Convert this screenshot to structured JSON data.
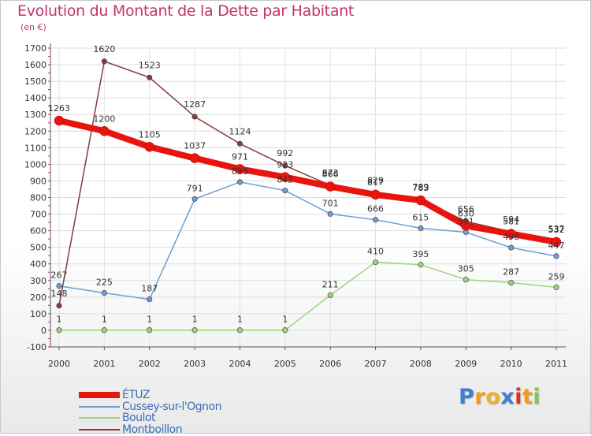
{
  "title": "Evolution du Montant de la Dette par Habitant",
  "subtitle": "(en €)",
  "brand": {
    "letters": [
      "P",
      "r",
      "o",
      "x",
      "i",
      "t",
      "i"
    ],
    "colors": [
      "#3d7fd1",
      "#f29a1d",
      "#e8b52a",
      "#3d7fd1",
      "#d8342a",
      "#f29a1d",
      "#8cc63f"
    ]
  },
  "chart_data": {
    "type": "line",
    "x": [
      "2000",
      "2001",
      "2002",
      "2003",
      "2004",
      "2005",
      "2006",
      "2007",
      "2008",
      "2009",
      "2010",
      "2011"
    ],
    "ylim": [
      -100,
      1700
    ],
    "yticks": [
      -100,
      0,
      100,
      200,
      300,
      400,
      500,
      600,
      700,
      800,
      900,
      1000,
      1100,
      1200,
      1300,
      1400,
      1500,
      1600,
      1700
    ],
    "grid": true,
    "legend_position": "bottom-left",
    "series": [
      {
        "name": "ÉTUZ",
        "color": "#e8150f",
        "values": [
          1263,
          1200,
          1105,
          1037,
          971,
          923,
          866,
          817,
          783,
          630,
          581,
          532
        ],
        "labels": [
          "1263",
          "1200",
          "1105",
          "1037",
          "971",
          "923",
          "866",
          "817",
          "783",
          "630",
          "581",
          "532"
        ]
      },
      {
        "name": "Cussey-sur-l'Ognon",
        "color": "#6e9fd2",
        "values": [
          267,
          225,
          187,
          791,
          893,
          842,
          701,
          666,
          615,
          591,
          498,
          447
        ],
        "labels": [
          "267",
          "225",
          "187",
          "791",
          "893",
          "842",
          "701",
          "666",
          "615",
          "591",
          "498",
          "447"
        ]
      },
      {
        "name": "Boulot",
        "color": "#9ad67c",
        "values": [
          1,
          1,
          1,
          1,
          1,
          1,
          211,
          410,
          395,
          305,
          287,
          259
        ],
        "labels": [
          "1",
          "1",
          "1",
          "1",
          "1",
          "1",
          "211",
          "410",
          "395",
          "305",
          "287",
          "259"
        ]
      },
      {
        "name": "Montboillon",
        "color": "#8a3a3a",
        "values": [
          148,
          1620,
          1523,
          1287,
          1124,
          992,
          873,
          829,
          789,
          656,
          594,
          537
        ],
        "labels": [
          "148",
          "1620",
          "1523",
          "1287",
          "1124",
          "992",
          "873",
          "829",
          "789",
          "656",
          "594",
          "537"
        ]
      }
    ]
  }
}
